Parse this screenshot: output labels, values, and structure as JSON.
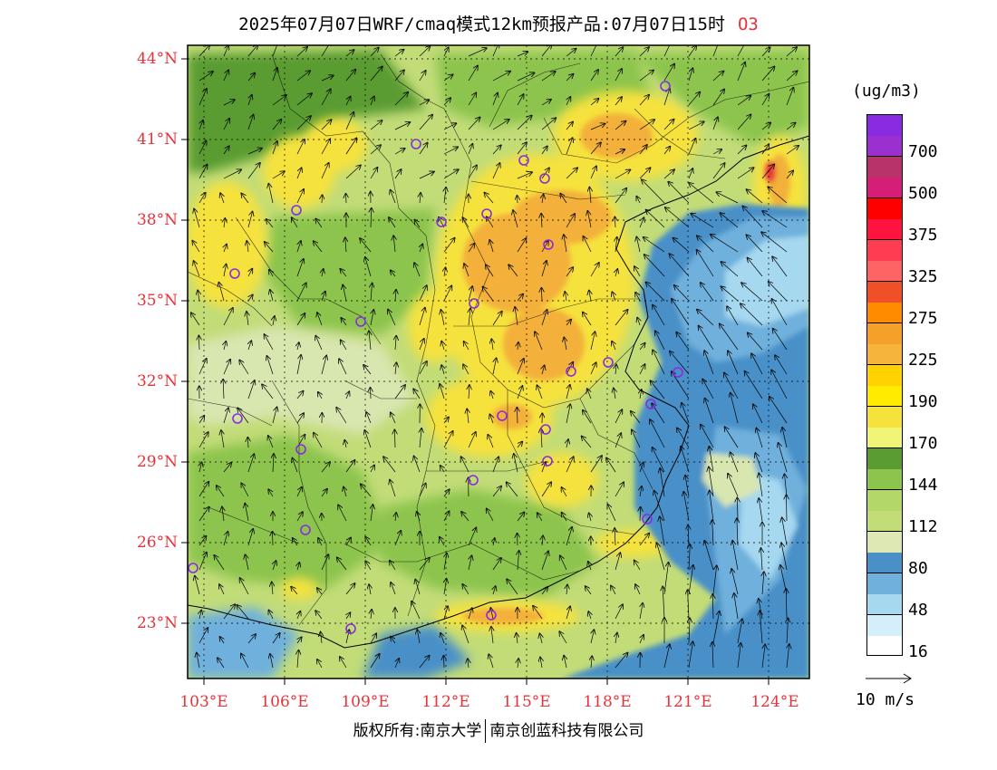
{
  "title": "2025年07月07日WRF/cmaq模式12km预报产品:07月07日15时",
  "species": "O3",
  "unit": "(ug/m3)",
  "map": {
    "lat_labels": [
      "44°N",
      "41°N",
      "38°N",
      "35°N",
      "32°N",
      "29°N",
      "26°N",
      "23°N"
    ],
    "lon_labels": [
      "103°E",
      "106°E",
      "109°E",
      "112°E",
      "115°E",
      "118°E",
      "121°E",
      "124°E"
    ],
    "colors": {
      "sea_dark": "#4a90c8",
      "sea_mid": "#6fb0dc",
      "sea_light": "#a6d8f0",
      "land_low": "#d8e6b0",
      "land_mid": "#c2dc78",
      "land_green": "#8cc44e",
      "land_dark": "#5a9c32",
      "yellow": "#f6e23c",
      "orange": "#f3b03a"
    }
  },
  "legend": {
    "levels": [
      {
        "label": "",
        "color": "#8a2be2"
      },
      {
        "label": "700",
        "color": "#9b30d0"
      },
      {
        "label": "",
        "color": "#b8336a"
      },
      {
        "label": "500",
        "color": "#d41e78"
      },
      {
        "label": "",
        "color": "#ff0000"
      },
      {
        "label": "375",
        "color": "#ff1440"
      },
      {
        "label": "",
        "color": "#ff3c50"
      },
      {
        "label": "325",
        "color": "#ff6464"
      },
      {
        "label": "",
        "color": "#f05028"
      },
      {
        "label": "275",
        "color": "#ff8c00"
      },
      {
        "label": "",
        "color": "#f5a028"
      },
      {
        "label": "225",
        "color": "#f7b43c"
      },
      {
        "label": "",
        "color": "#ffd200"
      },
      {
        "label": "190",
        "color": "#ffeb00"
      },
      {
        "label": "",
        "color": "#f6e23c"
      },
      {
        "label": "170",
        "color": "#f0f578"
      },
      {
        "label": "",
        "color": "#5a9c32"
      },
      {
        "label": "144",
        "color": "#8cc44e"
      },
      {
        "label": "",
        "color": "#b4d868"
      },
      {
        "label": "112",
        "color": "#c2dc78"
      },
      {
        "label": "",
        "color": "#dde8b4"
      },
      {
        "label": "80",
        "color": "#4a90c8"
      },
      {
        "label": "",
        "color": "#6fb0dc"
      },
      {
        "label": "48",
        "color": "#a6d8f0"
      },
      {
        "label": "",
        "color": "#d4eefa"
      },
      {
        "label": "16",
        "color": "#ffffff"
      }
    ]
  },
  "reference_vector": {
    "label": "10 m/s"
  },
  "footer": {
    "left": "版权所有:南京大学",
    "right": "南京创蓝科技有限公司"
  }
}
